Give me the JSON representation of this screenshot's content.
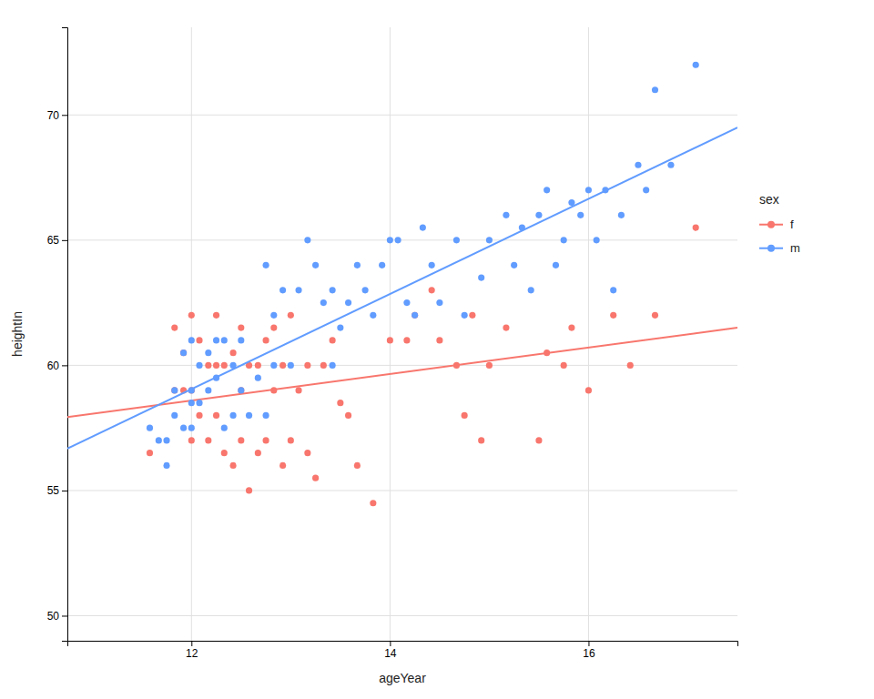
{
  "chart_data": {
    "type": "scatter",
    "xlabel": "ageYear",
    "ylabel": "heightIn",
    "legend_title": "sex",
    "legend": "right",
    "grid": true,
    "xlim": [
      10.75,
      17.5
    ],
    "ylim": [
      49.0,
      73.5
    ],
    "xticks": [
      12,
      14,
      16
    ],
    "yticks": [
      50,
      55,
      60,
      65,
      70
    ],
    "series": [
      {
        "name": "f",
        "color": "#F8766D",
        "marker": "circle",
        "x": [
          11.58,
          11.83,
          11.83,
          11.92,
          11.92,
          12.0,
          12.0,
          12.0,
          12.08,
          12.08,
          12.17,
          12.17,
          12.25,
          12.25,
          12.25,
          12.33,
          12.33,
          12.42,
          12.42,
          12.5,
          12.5,
          12.5,
          12.58,
          12.58,
          12.67,
          12.67,
          12.75,
          12.75,
          12.83,
          12.83,
          12.92,
          12.92,
          13.0,
          13.0,
          13.08,
          13.17,
          13.17,
          13.25,
          13.33,
          13.42,
          13.5,
          13.58,
          13.67,
          13.83,
          14.0,
          14.17,
          14.25,
          14.42,
          14.5,
          14.67,
          14.75,
          14.83,
          14.92,
          15.0,
          15.17,
          15.5,
          15.58,
          15.75,
          15.83,
          16.0,
          16.25,
          16.42,
          16.67,
          17.08
        ],
        "values": [
          56.5,
          59.0,
          61.5,
          59.0,
          60.5,
          57.0,
          59.0,
          62.0,
          58.0,
          61.0,
          57.0,
          60.0,
          58.0,
          60.0,
          62.0,
          56.5,
          60.0,
          56.0,
          60.5,
          57.0,
          59.0,
          61.5,
          55.0,
          60.0,
          56.5,
          60.0,
          57.0,
          61.0,
          59.0,
          61.5,
          56.0,
          60.0,
          57.0,
          62.0,
          59.0,
          56.5,
          60.0,
          55.5,
          60.0,
          61.0,
          58.5,
          58.0,
          56.0,
          54.5,
          61.0,
          61.0,
          62.0,
          63.0,
          61.0,
          60.0,
          58.0,
          62.0,
          57.0,
          60.0,
          61.5,
          57.0,
          60.5,
          60.0,
          61.5,
          59.0,
          62.0,
          60.0,
          62.0,
          65.5
        ],
        "fit": {
          "x": [
            10.75,
            17.5
          ],
          "values": [
            57.933,
            61.503
          ]
        }
      },
      {
        "name": "m",
        "color": "#619CFF",
        "marker": "circle",
        "x": [
          11.58,
          11.67,
          11.75,
          11.75,
          11.83,
          11.83,
          11.92,
          11.92,
          12.0,
          12.0,
          12.0,
          12.0,
          12.08,
          12.08,
          12.17,
          12.17,
          12.25,
          12.25,
          12.33,
          12.33,
          12.42,
          12.42,
          12.5,
          12.5,
          12.58,
          12.67,
          12.75,
          12.75,
          12.83,
          12.83,
          12.92,
          13.0,
          13.08,
          13.17,
          13.25,
          13.33,
          13.42,
          13.42,
          13.5,
          13.58,
          13.67,
          13.75,
          13.83,
          13.92,
          14.0,
          14.08,
          14.17,
          14.25,
          14.33,
          14.42,
          14.5,
          14.67,
          14.75,
          14.92,
          15.0,
          15.17,
          15.25,
          15.33,
          15.42,
          15.5,
          15.58,
          15.67,
          15.75,
          15.83,
          15.92,
          16.0,
          16.08,
          16.17,
          16.25,
          16.33,
          16.5,
          16.58,
          16.67,
          16.83,
          17.08
        ],
        "values": [
          57.5,
          57.0,
          56.0,
          57.0,
          58.0,
          59.0,
          57.5,
          60.5,
          57.5,
          58.5,
          59.0,
          61.0,
          58.5,
          60.0,
          59.0,
          60.5,
          59.5,
          61.0,
          57.5,
          61.0,
          58.0,
          60.0,
          59.0,
          61.0,
          58.0,
          59.5,
          58.0,
          64.0,
          60.0,
          62.0,
          63.0,
          60.0,
          63.0,
          65.0,
          64.0,
          62.5,
          60.0,
          63.0,
          61.5,
          62.5,
          64.0,
          63.0,
          62.0,
          64.0,
          65.0,
          65.0,
          62.5,
          62.0,
          65.5,
          64.0,
          62.5,
          65.0,
          62.0,
          63.5,
          65.0,
          66.0,
          64.0,
          65.5,
          63.0,
          66.0,
          67.0,
          64.0,
          65.0,
          66.5,
          66.0,
          67.0,
          65.0,
          67.0,
          63.0,
          66.0,
          68.0,
          67.0,
          71.0,
          68.0,
          72.0
        ],
        "fit": {
          "x": [
            10.75,
            17.5
          ],
          "values": [
            56.676,
            69.5
          ]
        }
      }
    ]
  }
}
